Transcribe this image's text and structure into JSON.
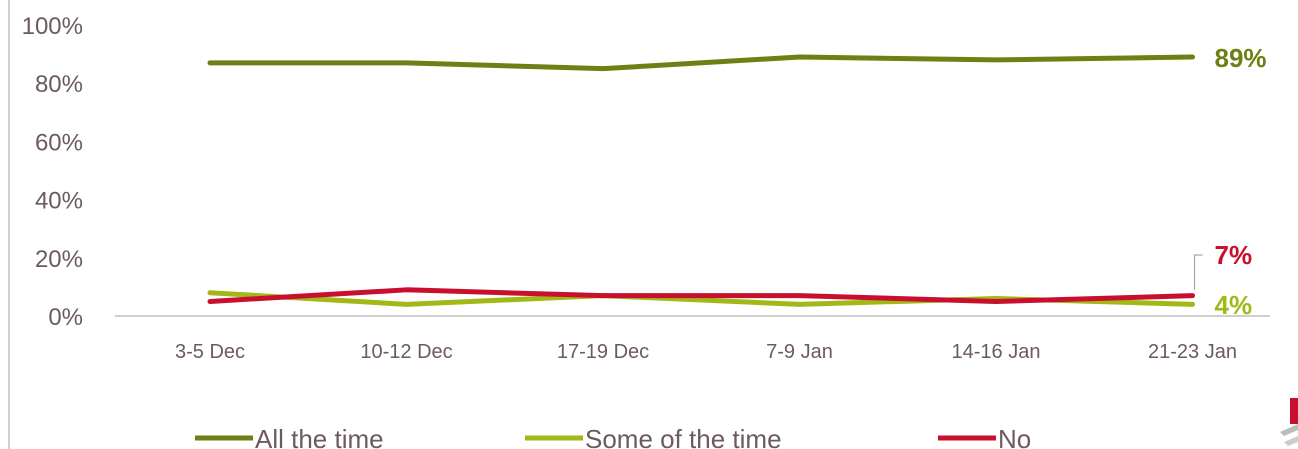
{
  "chart_data": {
    "type": "line",
    "categories": [
      "3-5 Dec",
      "10-12 Dec",
      "17-19 Dec",
      "7-9 Jan",
      "14-16 Jan",
      "21-23 Jan"
    ],
    "ylim": [
      0,
      100
    ],
    "yticks": [
      "0%",
      "20%",
      "40%",
      "60%",
      "80%",
      "100%"
    ],
    "grid": false,
    "legend_position": "bottom",
    "series": [
      {
        "name": "All the time",
        "color": "#6f7f14",
        "values": [
          87,
          87,
          85,
          89,
          88,
          89
        ],
        "end_label": "89%"
      },
      {
        "name": "Some of the time",
        "color": "#a3b817",
        "values": [
          8,
          4,
          7,
          4,
          6,
          4
        ],
        "end_label": "4%"
      },
      {
        "name": "No",
        "color": "#c8102e",
        "values": [
          5,
          9,
          7,
          7,
          5,
          7
        ],
        "end_label": "7%"
      }
    ]
  }
}
